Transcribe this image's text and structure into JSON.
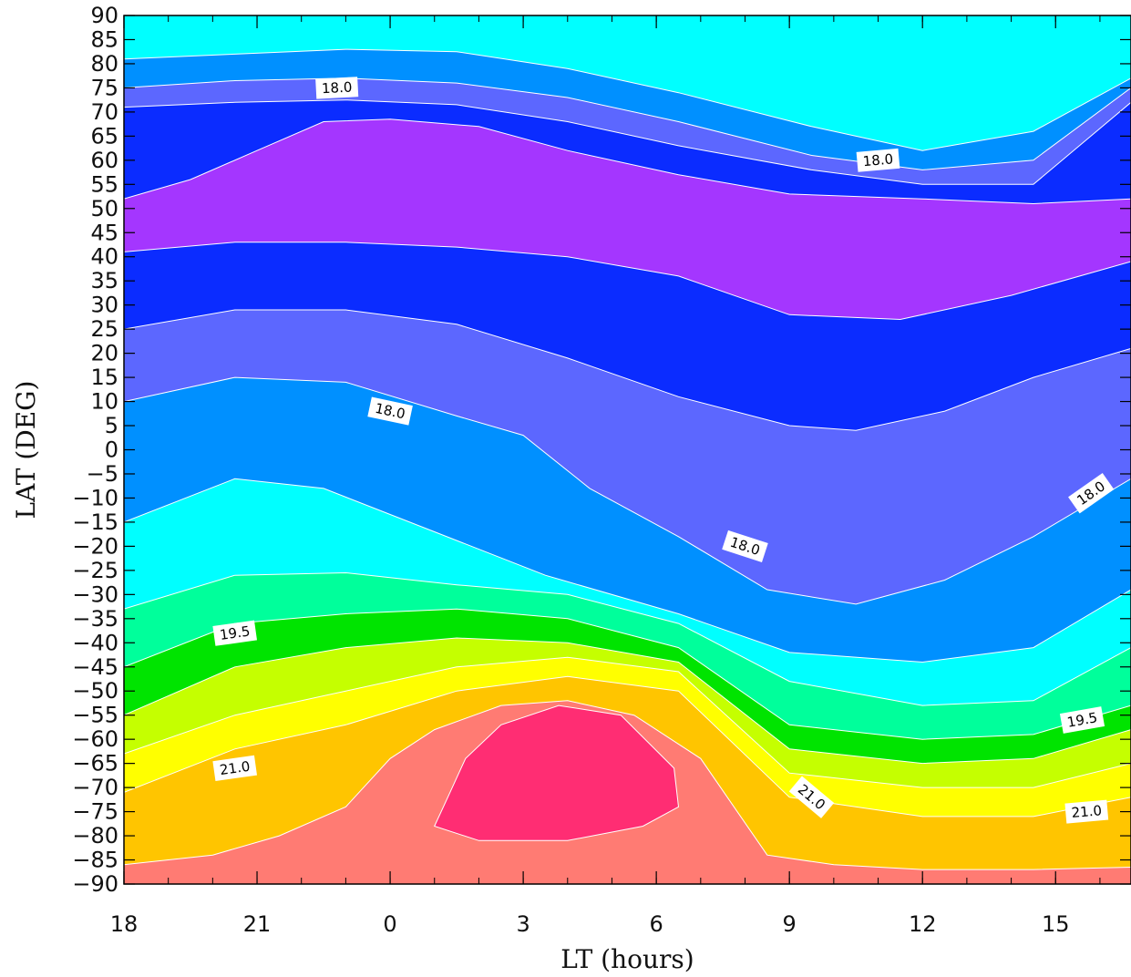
{
  "chart_data": {
    "type": "heatmap",
    "subtype": "filled-contour",
    "title": "",
    "xlabel": "LT (hours)",
    "ylabel": "LAT (DEG)",
    "xlim": [
      18,
      40.7
    ],
    "ylim": [
      -90,
      90
    ],
    "x_ticks": [
      {
        "value": 18,
        "label": "18"
      },
      {
        "value": 21,
        "label": "21"
      },
      {
        "value": 24,
        "label": "0"
      },
      {
        "value": 27,
        "label": "3"
      },
      {
        "value": 30,
        "label": "6"
      },
      {
        "value": 33,
        "label": "9"
      },
      {
        "value": 36,
        "label": "12"
      },
      {
        "value": 39,
        "label": "15"
      }
    ],
    "y_ticks": [
      90,
      85,
      80,
      75,
      70,
      65,
      60,
      55,
      50,
      45,
      40,
      35,
      30,
      25,
      20,
      15,
      10,
      5,
      0,
      -5,
      -10,
      -15,
      -20,
      -25,
      -30,
      -35,
      -40,
      -45,
      -50,
      -55,
      -60,
      -65,
      -70,
      -75,
      -80,
      -85,
      -90
    ],
    "grid": false,
    "band_colors": [
      "#00ffff",
      "#0090ff",
      "#5c67ff",
      "#0b2cff",
      "#a436ff",
      "#0b2cff",
      "#5c67ff",
      "#0090ff",
      "#00ffff",
      "#00ff9b",
      "#00e400",
      "#c5ff00",
      "#ffff00",
      "#ffc500",
      "#ff7b73",
      "#ff2d73"
    ],
    "contour_line_color": "#ffffff",
    "boundaries": [
      {
        "x": [
          18,
          20.5,
          23,
          25.5,
          28,
          30.5,
          33.5,
          36,
          38.5,
          40.7
        ],
        "y": [
          81,
          82,
          83,
          82.5,
          79,
          74,
          67,
          62,
          66,
          77
        ]
      },
      {
        "x": [
          18,
          20.5,
          23,
          25.5,
          28,
          30.5,
          33.5,
          36,
          38.5,
          40.7
        ],
        "y": [
          75,
          76.5,
          77,
          76,
          73,
          68,
          61,
          58,
          60,
          75
        ]
      },
      {
        "x": [
          18,
          20.5,
          23,
          25.5,
          28,
          30.5,
          33.5,
          36,
          38.5,
          40.7
        ],
        "y": [
          71,
          72,
          72.5,
          71.5,
          68,
          63,
          58,
          55,
          55,
          72
        ]
      },
      {
        "x": [
          18,
          19.5,
          21,
          22.5,
          24,
          26,
          28,
          30.5,
          33,
          36,
          38.5,
          40.7
        ],
        "y": [
          52,
          56,
          62,
          68,
          68.5,
          67,
          62,
          57,
          53,
          52,
          51,
          52
        ]
      },
      {
        "x": [
          18,
          20.5,
          23,
          25.5,
          28,
          30.5,
          33,
          35.5,
          38,
          40.7
        ],
        "y": [
          41,
          43,
          43,
          42,
          40,
          36,
          28,
          27,
          32,
          39
        ]
      },
      {
        "x": [
          18,
          20.5,
          23,
          25.5,
          28,
          30.5,
          33,
          34.5,
          36.5,
          38.5,
          40.7
        ],
        "y": [
          25,
          29,
          29,
          26,
          19,
          11,
          5,
          4,
          8,
          15,
          21
        ]
      },
      {
        "x": [
          18,
          20.5,
          23,
          25.5,
          27,
          28.5,
          30.5,
          32.5,
          34.5,
          36.5,
          38.5,
          40.7
        ],
        "y": [
          10,
          15,
          14,
          7,
          3,
          -8,
          -18,
          -29,
          -32,
          -27,
          -18,
          -6
        ]
      },
      {
        "x": [
          18,
          20.5,
          22.5,
          25,
          27.5,
          30.5,
          33,
          36,
          38.5,
          40.7
        ],
        "y": [
          -15,
          -6,
          -8,
          -17,
          -26,
          -34,
          -42,
          -44,
          -41,
          -29
        ]
      },
      {
        "x": [
          18,
          20.5,
          23,
          25.5,
          28,
          30.5,
          33,
          36,
          38.5,
          40.7
        ],
        "y": [
          -33,
          -26,
          -25.5,
          -28,
          -30,
          -36,
          -48,
          -53,
          -52,
          -41
        ]
      },
      {
        "x": [
          18,
          20.5,
          23,
          25.5,
          28,
          30.5,
          33,
          36,
          38.5,
          40.7
        ],
        "y": [
          -45,
          -36,
          -34,
          -33,
          -35,
          -41,
          -57,
          -60,
          -59,
          -53
        ]
      },
      {
        "x": [
          18,
          20.5,
          23,
          25.5,
          28,
          30.5,
          33,
          36,
          38.5,
          40.7
        ],
        "y": [
          -55,
          -45,
          -41,
          -39,
          -40,
          -44,
          -62,
          -65,
          -64,
          -58
        ]
      },
      {
        "x": [
          18,
          20.5,
          23,
          25.5,
          28,
          30.5,
          33,
          36,
          38.5,
          40.7
        ],
        "y": [
          -63,
          -55,
          -50,
          -45,
          -43,
          -46,
          -67,
          -70,
          -70,
          -65
        ]
      },
      {
        "x": [
          18,
          20.5,
          23,
          25.5,
          28,
          30.5,
          33,
          36,
          38.5,
          40.7
        ],
        "y": [
          -71,
          -62,
          -57,
          -50,
          -47,
          -50,
          -72,
          -76,
          -76,
          -72
        ]
      },
      {
        "x": [
          18,
          20,
          21.5,
          23,
          24,
          25,
          26.5,
          28,
          29.5,
          31,
          32.5,
          34,
          36,
          38.5,
          40.7
        ],
        "y": [
          -86,
          -84,
          -80,
          -74,
          -64,
          -58,
          -53,
          -52,
          -55,
          -64,
          -84,
          -86,
          -87,
          -87,
          -86.5
        ]
      }
    ],
    "closed_regions": [
      {
        "x": [
          25.3,
          25.7,
          26.5,
          27.8,
          29.2,
          30.4,
          30.5,
          29.7,
          28,
          26,
          25
        ],
        "y": [
          -72,
          -64,
          -57,
          -53,
          -55,
          -66,
          -74,
          -78,
          -81,
          -81,
          -78
        ]
      }
    ],
    "contour_labels": [
      {
        "x": 22.8,
        "y": 75,
        "text": "18.0",
        "angle": -3
      },
      {
        "x": 35.0,
        "y": 60,
        "text": "18.0",
        "angle": -5
      },
      {
        "x": 24.0,
        "y": 8,
        "text": "18.0",
        "angle": 12
      },
      {
        "x": 32.0,
        "y": -20,
        "text": "18.0",
        "angle": 18
      },
      {
        "x": 39.8,
        "y": -9,
        "text": "18.0",
        "angle": -35
      },
      {
        "x": 20.5,
        "y": -38,
        "text": "19.5",
        "angle": -8
      },
      {
        "x": 39.6,
        "y": -56,
        "text": "19.5",
        "angle": -10
      },
      {
        "x": 20.5,
        "y": -66,
        "text": "21.0",
        "angle": -8
      },
      {
        "x": 33.5,
        "y": -72,
        "text": "21.0",
        "angle": 40
      },
      {
        "x": 39.7,
        "y": -75,
        "text": "21.0",
        "angle": -5
      }
    ]
  }
}
